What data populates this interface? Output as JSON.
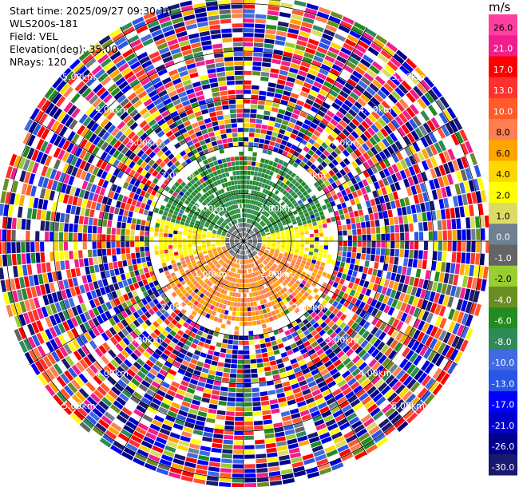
{
  "header": {
    "start_time": "Start time: 2025/09/27 09:30:16",
    "instrument": "WLS200s-181",
    "field": "Field: VEL",
    "elevation": "Elevation(deg): 35.00",
    "nrays": "NRays: 120"
  },
  "colorbar": {
    "unit": "m/s",
    "ticks": [
      "26.0",
      "21.0",
      "17.0",
      "13.0",
      "10.0",
      "8.0",
      "6.0",
      "4.0",
      "2.0",
      "1.0",
      "0.0",
      "-1.0",
      "-2.0",
      "-4.0",
      "-6.0",
      "-8.0",
      "-10.0",
      "-13.0",
      "-17.0",
      "-21.0",
      "-26.0",
      "-30.0"
    ],
    "colors": [
      "#ff3fa0",
      "#f01e8c",
      "#ff0000",
      "#ff3030",
      "#ff5a28",
      "#ff7f50",
      "#ffa500",
      "#ffd700",
      "#ffff00",
      "#dcdc64",
      "#708090",
      "#646464",
      "#9acd32",
      "#6b8e23",
      "#228b22",
      "#2e8b57",
      "#4169e1",
      "#2b55e6",
      "#0000ff",
      "#0000cd",
      "#00008b",
      "#191970"
    ]
  },
  "chart_data": {
    "type": "heatmap",
    "projection": "polar-ppi",
    "field": "VEL",
    "unit": "m/s",
    "nrays": 120,
    "elevation_deg": 35.0,
    "range_rings_km": [
      1.0,
      2.0,
      3.0,
      4.0,
      5.0
    ],
    "range_ring_labels": [
      "1.00km",
      "2.00km",
      "3.00km",
      "4.00km",
      "5.00km"
    ],
    "max_range_km": 5.2,
    "colorscale_bounds": [
      -30.0,
      -26.0,
      -21.0,
      -17.0,
      -13.0,
      -10.0,
      -8.0,
      -6.0,
      -4.0,
      -2.0,
      -1.0,
      0.0,
      1.0,
      2.0,
      4.0,
      6.0,
      8.0,
      10.0,
      13.0,
      17.0,
      21.0,
      26.0
    ],
    "near_field_pattern": "negative velocities (green, -4 to -8 m/s) to the north/northwest within ~1.5 km; positive velocities (orange, 6 to 10 m/s) to the south within ~1.5 km; yellow (2 to 4 m/s) band between them; noisy random values beyond ~2 km"
  }
}
